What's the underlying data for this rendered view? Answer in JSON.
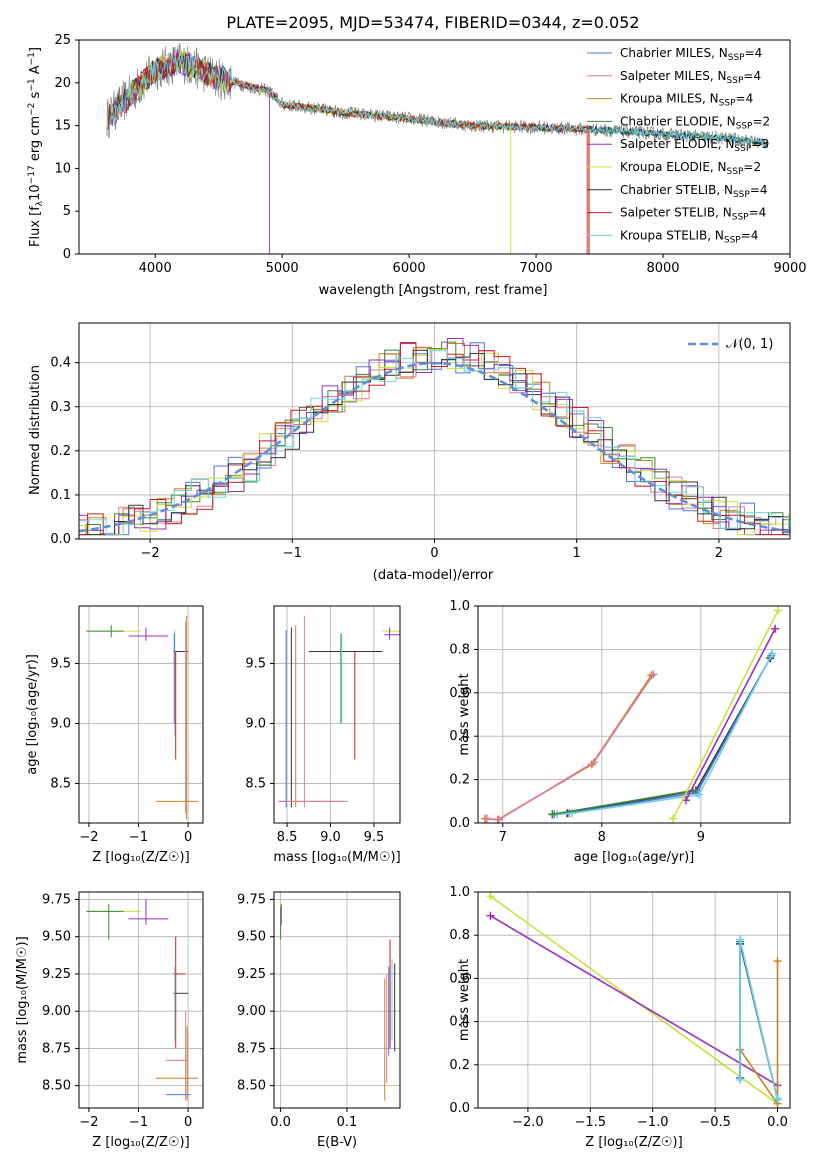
{
  "chart_data": [
    {
      "type": "line",
      "title": "PLATE=2095, MJD=53474, FIBERID=0344, z=0.052",
      "xlabel": "wavelength [Angstrom, rest frame]",
      "ylabel": "Flux [fλ10⁻¹⁷ erg cm⁻² s⁻¹ A⁻¹]",
      "xlim": [
        3400,
        9000
      ],
      "ylim": [
        0,
        25
      ],
      "xticks": [
        "4000",
        "5000",
        "6000",
        "7000",
        "8000",
        "9000"
      ],
      "yticks": [
        "0",
        "5",
        "10",
        "15",
        "20",
        "25"
      ],
      "grid": false,
      "legend": "top-right",
      "series": [
        {
          "name": "Chabrier MILES, N",
          "sub": "SSP",
          "n": "=4",
          "color": "#4c78d8"
        },
        {
          "name": "Salpeter MILES, N",
          "sub": "SSP",
          "n": "=4",
          "color": "#e07aa0"
        },
        {
          "name": "Kroupa MILES, N",
          "sub": "SSP",
          "n": "=4",
          "color": "#c8851e"
        },
        {
          "name": "Chabrier ELODIE, N",
          "sub": "SSP",
          "n": "=2",
          "color": "#3a8a3a"
        },
        {
          "name": "Salpeter ELODIE, N",
          "sub": "SSP",
          "n": "=3",
          "color": "#9a2fc0"
        },
        {
          "name": "Kroupa ELODIE, N",
          "sub": "SSP",
          "n": "=2",
          "color": "#c8e03a"
        },
        {
          "name": "Chabrier STELIB, N",
          "sub": "SSP",
          "n": "=4",
          "color": "#333333"
        },
        {
          "name": "Salpeter STELIB, N",
          "sub": "SSP",
          "n": "=4",
          "color": "#c81e1e"
        },
        {
          "name": "Kroupa STELIB, N",
          "sub": "SSP",
          "n": "=4",
          "color": "#6fd3e0"
        }
      ],
      "data_color": "#808080",
      "continuum": {
        "x": [
          3600,
          4000,
          4200,
          4500,
          4900,
          5000,
          5500,
          6000,
          6500,
          7000,
          7500,
          8000,
          8500,
          8800
        ],
        "y": [
          15.5,
          21.5,
          22.5,
          20.5,
          19.0,
          17.5,
          16.5,
          15.8,
          15.0,
          14.8,
          14.5,
          14.0,
          13.5,
          13.0
        ]
      }
    },
    {
      "type": "line",
      "xlabel": "(data-model)/error",
      "ylabel": "Normed distribution",
      "xlim": [
        -2.5,
        2.5
      ],
      "ylim": [
        0,
        0.49
      ],
      "xticks": [
        "−2",
        "−1",
        "0",
        "1",
        "2"
      ],
      "yticks": [
        "0.0",
        "0.1",
        "0.2",
        "0.3",
        "0.4"
      ],
      "grid": true,
      "legend": "top-right",
      "legend_label": "𝒩(0, 1)",
      "normal_color": "#5b8edb"
    },
    {
      "type": "scatter",
      "xlabel": "Z [log₁₀(Z/Z☉)]",
      "ylabel": "age  [log₁₀(age/yr)]",
      "xlim": [
        -2.2,
        0.3
      ],
      "ylim": [
        8.17,
        9.98
      ],
      "xticks": [
        "−2",
        "−1",
        "0"
      ],
      "yticks": [
        "8.5",
        "9.0",
        "9.5"
      ],
      "grid": true
    },
    {
      "type": "scatter",
      "xlabel": "mass [log₁₀(M/M☉)]",
      "xlim": [
        8.35,
        9.8
      ],
      "ylim": [
        8.17,
        9.98
      ],
      "xticks": [
        "8.5",
        "9.0",
        "9.5"
      ],
      "yticks": [
        "8.5",
        "9.0",
        "9.5"
      ],
      "grid": true
    },
    {
      "type": "line",
      "xlabel": "age  [log₁₀(age/yr)]",
      "ylabel": "mass weight",
      "xlim": [
        6.75,
        9.9
      ],
      "ylim": [
        0,
        1.0
      ],
      "xticks": [
        "7",
        "8",
        "9"
      ],
      "yticks": [
        "0.0",
        "0.2",
        "0.4",
        "0.6",
        "0.8",
        "1.0"
      ],
      "grid": true,
      "series": [
        {
          "color": "#c8851e",
          "x": [
            6.82,
            6.95,
            7.9,
            8.5
          ],
          "y": [
            0.02,
            0.015,
            0.27,
            0.68
          ]
        },
        {
          "color": "#e07aa0",
          "x": [
            6.84,
            6.96,
            7.92,
            8.52
          ],
          "y": [
            0.02,
            0.015,
            0.28,
            0.685
          ]
        },
        {
          "color": "#333333",
          "x": [
            7.5,
            7.65,
            8.95,
            9.7
          ],
          "y": [
            0.04,
            0.045,
            0.15,
            0.76
          ]
        },
        {
          "color": "#4c78d8",
          "x": [
            7.52,
            7.67,
            8.96,
            9.71
          ],
          "y": [
            0.04,
            0.045,
            0.14,
            0.77
          ]
        },
        {
          "color": "#6fd3e0",
          "x": [
            7.55,
            7.7,
            8.98,
            9.72
          ],
          "y": [
            0.04,
            0.045,
            0.13,
            0.78
          ]
        },
        {
          "color": "#3a8a3a",
          "x": [
            7.5,
            8.92
          ],
          "y": [
            0.04,
            0.15
          ]
        },
        {
          "color": "#9a2fc0",
          "x": [
            8.85,
            9.75
          ],
          "y": [
            0.105,
            0.895
          ]
        },
        {
          "color": "#c8e03a",
          "x": [
            8.72,
            9.78
          ],
          "y": [
            0.02,
            0.98
          ]
        }
      ]
    },
    {
      "type": "scatter",
      "xlabel": "Z [log₁₀(Z/Z☉)]",
      "ylabel": "mass [log₁₀(M/M☉)]",
      "xlim": [
        -2.2,
        0.3
      ],
      "ylim": [
        8.35,
        9.8
      ],
      "xticks": [
        "−2",
        "−1",
        "0"
      ],
      "yticks": [
        "8.50",
        "8.75",
        "9.00",
        "9.25",
        "9.50",
        "9.75"
      ],
      "grid": true
    },
    {
      "type": "scatter",
      "xlabel": "E(B-V)",
      "xlim": [
        -0.01,
        0.18
      ],
      "ylim": [
        8.35,
        9.8
      ],
      "xticks": [
        "0.0",
        "0.1"
      ],
      "yticks": [
        "8.50",
        "8.75",
        "9.00",
        "9.25",
        "9.50",
        "9.75"
      ],
      "grid": true
    },
    {
      "type": "line",
      "xlabel": "Z [log₁₀(Z/Z☉)]",
      "ylabel": "mass weight",
      "xlim": [
        -2.4,
        0.1
      ],
      "ylim": [
        0,
        1.0
      ],
      "xticks": [
        "−2.0",
        "−1.5",
        "−1.0",
        "−0.5",
        "0.0"
      ],
      "yticks": [
        "0.0",
        "0.2",
        "0.4",
        "0.6",
        "0.8",
        "1.0"
      ],
      "grid": true,
      "series": [
        {
          "color": "#c8e03a",
          "x": [
            -2.3,
            0.0
          ],
          "y": [
            0.98,
            0.02
          ]
        },
        {
          "color": "#9a2fc0",
          "x": [
            -2.3,
            0.0
          ],
          "y": [
            0.89,
            0.105
          ]
        },
        {
          "color": "#c8851e",
          "x": [
            -0.3,
            0.0,
            0.0
          ],
          "y": [
            0.27,
            0.02,
            0.68
          ]
        },
        {
          "color": "#333333",
          "x": [
            -0.3,
            -0.3,
            0.0,
            0.0
          ],
          "y": [
            0.14,
            0.76,
            0.04,
            0.045
          ]
        },
        {
          "color": "#4c78d8",
          "x": [
            -0.3,
            -0.3,
            0.0,
            0.0
          ],
          "y": [
            0.14,
            0.77,
            0.04,
            0.045
          ]
        },
        {
          "color": "#6fd3e0",
          "x": [
            -0.3,
            -0.3,
            0.0,
            0.0
          ],
          "y": [
            0.13,
            0.78,
            0.04,
            0.045
          ]
        }
      ]
    }
  ]
}
